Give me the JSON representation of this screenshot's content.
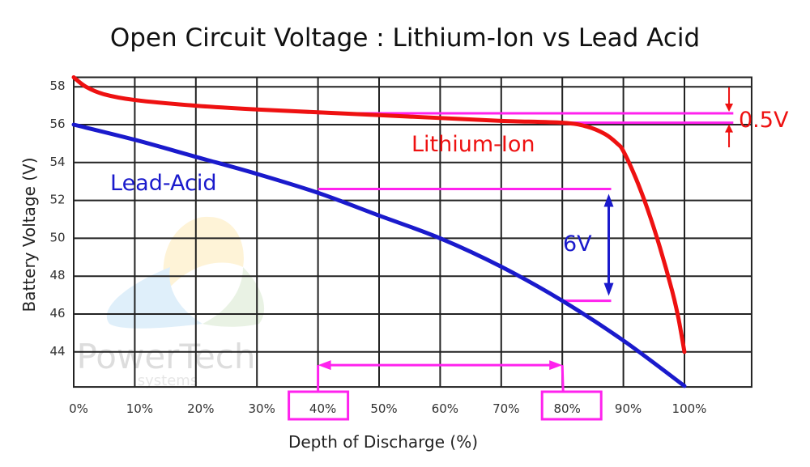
{
  "chart_data": {
    "type": "line",
    "title": "Open Circuit Voltage : Lithium-Ion vs Lead Acid",
    "xlabel": "Depth of Discharge (%)",
    "ylabel": "Battery Voltage (V)",
    "xlim": [
      0,
      111
    ],
    "ylim": [
      42.15,
      58.5
    ],
    "grid": true,
    "x_ticks": [
      0,
      10,
      20,
      30,
      40,
      50,
      60,
      70,
      80,
      90,
      100
    ],
    "x_tick_labels": [
      "0%",
      "10%",
      "20%",
      "30%",
      "40%",
      "50%",
      "60%",
      "70%",
      "80%",
      "90%",
      "100%"
    ],
    "y_ticks": [
      44,
      46,
      48,
      50,
      52,
      54,
      56,
      58
    ],
    "y_tick_labels": [
      "44",
      "46",
      "48",
      "50",
      "52",
      "54",
      "56",
      "58"
    ],
    "series": [
      {
        "name": "Lithium-Ion",
        "color": "#ee1111",
        "x": [
          0,
          2,
          5,
          10,
          20,
          30,
          40,
          50,
          60,
          70,
          80,
          84,
          87,
          89,
          90,
          92,
          94,
          96,
          98,
          99,
          100
        ],
        "y": [
          58.5,
          58.0,
          57.6,
          57.3,
          57.0,
          56.8,
          56.65,
          56.5,
          56.35,
          56.2,
          56.1,
          55.9,
          55.5,
          55.0,
          54.6,
          53.2,
          51.5,
          49.5,
          47.2,
          45.8,
          44.0
        ]
      },
      {
        "name": "Lead-Acid",
        "color": "#1a1acc",
        "x": [
          0,
          10,
          20,
          30,
          40,
          50,
          60,
          70,
          80,
          90,
          100
        ],
        "y": [
          56.0,
          55.2,
          54.3,
          53.4,
          52.4,
          51.2,
          50.0,
          48.5,
          46.7,
          44.6,
          42.2
        ]
      }
    ],
    "annotations": {
      "li_delta_label": "0.5V",
      "la_delta_label": "6V",
      "highlight_color": "#ff22ee",
      "li_range": [
        56.6,
        56.1
      ],
      "la_range": [
        52.6,
        46.7
      ],
      "dod_window": [
        40,
        80
      ]
    },
    "watermark": {
      "brand": "PowerTech",
      "sub": "systems"
    }
  }
}
